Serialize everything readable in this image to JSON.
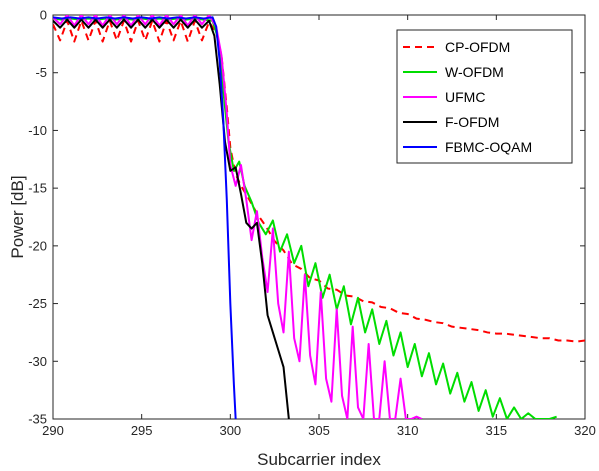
{
  "chart_data": {
    "type": "line",
    "title": "",
    "xlabel": "Subcarrier index",
    "ylabel": "Power [dB]",
    "xlim": [
      290,
      320
    ],
    "ylim": [
      -35,
      0
    ],
    "xticks": [
      290,
      295,
      300,
      305,
      310,
      315,
      320
    ],
    "yticks": [
      0,
      -5,
      -10,
      -15,
      -20,
      -25,
      -30,
      -35
    ],
    "grid": false,
    "legend_position": "top-right",
    "series": [
      {
        "name": "CP-OFDM",
        "color": "#ff0000",
        "style": "dashed",
        "x": [
          290,
          290.4,
          290.8,
          291.2,
          291.6,
          292.0,
          292.4,
          292.8,
          293.2,
          293.6,
          294.0,
          294.4,
          294.8,
          295.2,
          295.6,
          296.0,
          296.4,
          296.8,
          297.2,
          297.6,
          298.0,
          298.4,
          298.8,
          299.2,
          299.5,
          299.8,
          300.0,
          300.3,
          300.6,
          301.0,
          301.5,
          302,
          302.5,
          303,
          303.5,
          304,
          304.5,
          305,
          305.5,
          306,
          306.5,
          307,
          307.5,
          308,
          308.5,
          309,
          309.5,
          310,
          310.5,
          311,
          311.5,
          312,
          312.5,
          313,
          313.5,
          314,
          314.5,
          315,
          315.5,
          316,
          316.5,
          317,
          317.5,
          318,
          318.5,
          319,
          319.5,
          320
        ],
        "y": [
          -0.8,
          -2.2,
          -0.5,
          -2.3,
          -0.5,
          -2.2,
          -0.5,
          -2.3,
          -0.5,
          -2.2,
          -0.5,
          -2.3,
          -0.5,
          -2.2,
          -0.5,
          -2.3,
          -0.5,
          -2.2,
          -0.5,
          -2.3,
          -0.5,
          -2.2,
          -0.6,
          -1.5,
          -3.5,
          -8.0,
          -11.5,
          -13.8,
          -14.8,
          -15.8,
          -17.2,
          -18.3,
          -19.6,
          -20.4,
          -21.6,
          -22.0,
          -22.8,
          -23.0,
          -23.7,
          -23.8,
          -24.3,
          -24.4,
          -24.8,
          -24.9,
          -25.3,
          -25.4,
          -25.8,
          -25.9,
          -26.3,
          -26.4,
          -26.6,
          -26.7,
          -27.0,
          -27.1,
          -27.2,
          -27.3,
          -27.5,
          -27.6,
          -27.6,
          -27.7,
          -27.8,
          -27.9,
          -28.0,
          -28.0,
          -28.2,
          -28.2,
          -28.3,
          -28.2
        ]
      },
      {
        "name": "W-OFDM",
        "color": "#00dd00",
        "style": "solid",
        "x": [
          290,
          290.5,
          291,
          291.5,
          292,
          292.5,
          293,
          293.5,
          294,
          294.5,
          295,
          295.5,
          296,
          296.5,
          297,
          297.5,
          298,
          298.5,
          299,
          299.3,
          299.6,
          299.9,
          300.2,
          300.5,
          300.8,
          301.2,
          301.6,
          302.0,
          302.4,
          302.8,
          303.2,
          303.6,
          304.0,
          304.4,
          304.8,
          305.2,
          305.6,
          306.0,
          306.4,
          306.8,
          307.2,
          307.6,
          308.0,
          308.4,
          308.8,
          309.2,
          309.6,
          310.0,
          310.4,
          310.8,
          311.2,
          311.6,
          312.0,
          312.4,
          312.8,
          313.2,
          313.6,
          314.0,
          314.4,
          314.8,
          315.2,
          315.6,
          316.0,
          316.4,
          316.8,
          317.2,
          317.6,
          318.0,
          318.4
        ],
        "y": [
          -0.3,
          -0.4,
          -0.3,
          -0.4,
          -0.3,
          -0.4,
          -0.3,
          -0.4,
          -0.3,
          -0.4,
          -0.3,
          -0.4,
          -0.3,
          -0.4,
          -0.3,
          -0.4,
          -0.3,
          -0.4,
          -0.5,
          -2.0,
          -6.5,
          -11.0,
          -13.5,
          -12.7,
          -14.8,
          -16.2,
          -18.0,
          -19.0,
          -17.8,
          -20.5,
          -19.0,
          -21.5,
          -20.0,
          -23.5,
          -21.5,
          -24.5,
          -22.5,
          -25.5,
          -23.5,
          -26.8,
          -24.5,
          -27.5,
          -25.5,
          -28.5,
          -26.5,
          -29.5,
          -27.5,
          -30.5,
          -28.5,
          -31.3,
          -29.3,
          -32.0,
          -30.2,
          -32.8,
          -31.0,
          -33.5,
          -31.8,
          -34.3,
          -32.5,
          -34.8,
          -33.2,
          -35.0,
          -34.0,
          -35.0,
          -34.5,
          -35.0,
          -35.0,
          -35.0,
          -34.8
        ]
      },
      {
        "name": "UFMC",
        "color": "#ff00ff",
        "style": "solid",
        "x": [
          290,
          290.4,
          290.8,
          291.2,
          291.6,
          292.0,
          292.4,
          292.8,
          293.2,
          293.6,
          294.0,
          294.4,
          294.8,
          295.2,
          295.6,
          296.0,
          296.4,
          296.8,
          297.2,
          297.6,
          298.0,
          298.4,
          298.8,
          299.2,
          299.5,
          299.8,
          300.0,
          300.3,
          300.6,
          300.9,
          301.2,
          301.5,
          301.8,
          302.1,
          302.4,
          302.7,
          303.0,
          303.3,
          303.6,
          303.9,
          304.2,
          304.5,
          304.8,
          305.1,
          305.4,
          305.7,
          306.0,
          306.3,
          306.6,
          306.9,
          307.2,
          307.5,
          307.8,
          308.1,
          308.4,
          308.7,
          309.0,
          309.3,
          309.6,
          309.9,
          310.2,
          310.5,
          310.8
        ],
        "y": [
          -0.2,
          -0.8,
          0.0,
          -0.9,
          0.0,
          -0.8,
          0.0,
          -0.9,
          0.0,
          -0.8,
          0.0,
          -0.9,
          0.0,
          -0.8,
          0.0,
          -0.9,
          0.0,
          -0.8,
          0.0,
          -0.9,
          0.0,
          -0.8,
          0.0,
          -1.0,
          -3.5,
          -8.5,
          -13.0,
          -14.8,
          -13.0,
          -16.0,
          -19.5,
          -17.0,
          -21.0,
          -24.0,
          -18.5,
          -25.0,
          -27.5,
          -20.5,
          -28.0,
          -30.0,
          -22.5,
          -29.5,
          -32.0,
          -24.0,
          -31.5,
          -33.5,
          -25.5,
          -33.0,
          -35.0,
          -27.0,
          -34.0,
          -35.0,
          -28.5,
          -35.0,
          -35.0,
          -30.0,
          -35.0,
          -35.0,
          -31.5,
          -35.0,
          -35.0,
          -34.8,
          -35.0
        ]
      },
      {
        "name": "F-OFDM",
        "color": "#000000",
        "style": "solid",
        "x": [
          290,
          290.4,
          290.8,
          291.2,
          291.6,
          292.0,
          292.4,
          292.8,
          293.2,
          293.6,
          294.0,
          294.4,
          294.8,
          295.2,
          295.6,
          296.0,
          296.4,
          296.8,
          297.2,
          297.6,
          298.0,
          298.4,
          298.8,
          299.1,
          299.4,
          299.7,
          300.0,
          300.3,
          300.6,
          300.9,
          301.2,
          301.5,
          301.8,
          302.1,
          302.4,
          302.7,
          303.0,
          303.3
        ],
        "y": [
          -0.5,
          -1.1,
          -0.4,
          -1.1,
          -0.4,
          -1.1,
          -0.4,
          -1.1,
          -0.4,
          -1.1,
          -0.4,
          -1.1,
          -0.4,
          -1.1,
          -0.4,
          -1.1,
          -0.4,
          -1.1,
          -0.4,
          -1.1,
          -0.4,
          -1.1,
          -0.5,
          -1.8,
          -6.0,
          -11.0,
          -13.5,
          -13.2,
          -15.5,
          -18.0,
          -18.5,
          -18.0,
          -21.5,
          -26.0,
          -27.5,
          -29.0,
          -30.5,
          -35.0
        ]
      },
      {
        "name": "FBMC-OQAM",
        "color": "#0000ff",
        "style": "solid",
        "x": [
          290,
          290.5,
          291,
          291.5,
          292,
          292.5,
          293,
          293.5,
          294,
          294.5,
          295,
          295.5,
          296,
          296.5,
          297,
          297.5,
          298,
          298.5,
          299,
          299.2,
          299.4,
          299.6,
          299.8,
          300.0,
          300.2,
          300.3
        ],
        "y": [
          -0.2,
          -0.3,
          -0.2,
          -0.3,
          -0.2,
          -0.3,
          -0.2,
          -0.3,
          -0.2,
          -0.3,
          -0.2,
          -0.3,
          -0.2,
          -0.3,
          -0.2,
          -0.3,
          -0.2,
          -0.3,
          -0.2,
          -1.0,
          -4.0,
          -9.0,
          -16.0,
          -25.0,
          -32.0,
          -35.0
        ]
      }
    ]
  }
}
